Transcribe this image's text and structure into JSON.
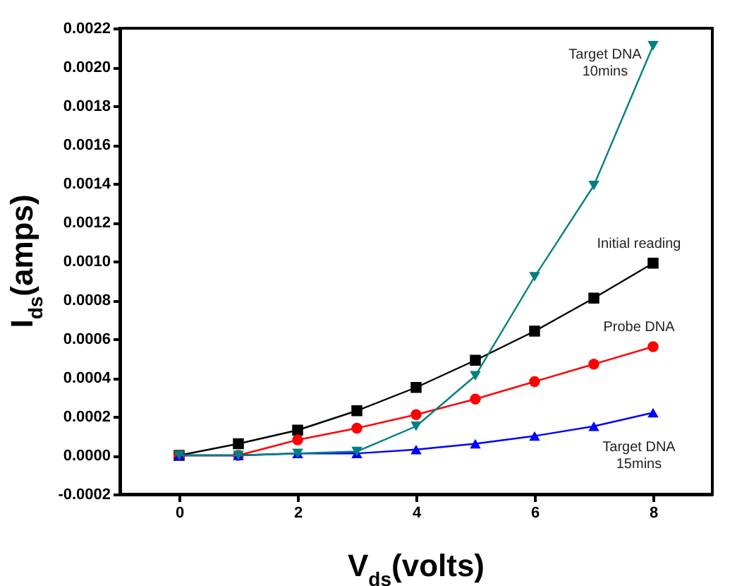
{
  "chart_data": {
    "type": "line",
    "xlabel": "V$_{ds}$(volts)",
    "ylabel": "I$_{ds}$(amps)",
    "x": [
      0,
      1,
      2,
      3,
      4,
      5,
      6,
      7,
      8
    ],
    "series": [
      {
        "name": "Initial reading",
        "color": "#000000",
        "marker": "square",
        "values": [
          0,
          6e-05,
          0.00013,
          0.00023,
          0.00035,
          0.00049,
          0.00064,
          0.00081,
          0.00099
        ]
      },
      {
        "name": "Probe DNA",
        "color": "#ff0000",
        "marker": "circle",
        "values": [
          0,
          0,
          8e-05,
          0.00014,
          0.00021,
          0.00029,
          0.00038,
          0.00047,
          0.00056
        ]
      },
      {
        "name": "Target DNA\n15mins",
        "color": "#0000ff",
        "marker": "triangle",
        "values": [
          0,
          0,
          1e-05,
          1e-05,
          3e-05,
          6e-05,
          0.0001,
          0.00015,
          0.00022
        ]
      },
      {
        "name": "Target DNA\n10mins",
        "color": "#008080",
        "marker": "triangle-down",
        "values": [
          0,
          0,
          1e-05,
          2e-05,
          0.00015,
          0.00041,
          0.00092,
          0.00139,
          0.00211
        ]
      }
    ],
    "xlim": [
      -1,
      9
    ],
    "xticks": [
      0,
      2,
      4,
      6,
      8
    ],
    "ylim": [
      -0.0002,
      0.0022
    ],
    "yticks": [
      {
        "value": -0.0002,
        "label": "-0.0002"
      },
      {
        "value": 0,
        "label": "0.0000"
      },
      0.0002,
      0.0004,
      0.0006,
      0.0008,
      {
        "value": 0.001,
        "label": "0.0010"
      },
      0.0012,
      0.0014,
      0.0016,
      0.0018,
      {
        "value": 0.002,
        "label": "0.0020"
      },
      0.0022
    ],
    "grid": false
  }
}
